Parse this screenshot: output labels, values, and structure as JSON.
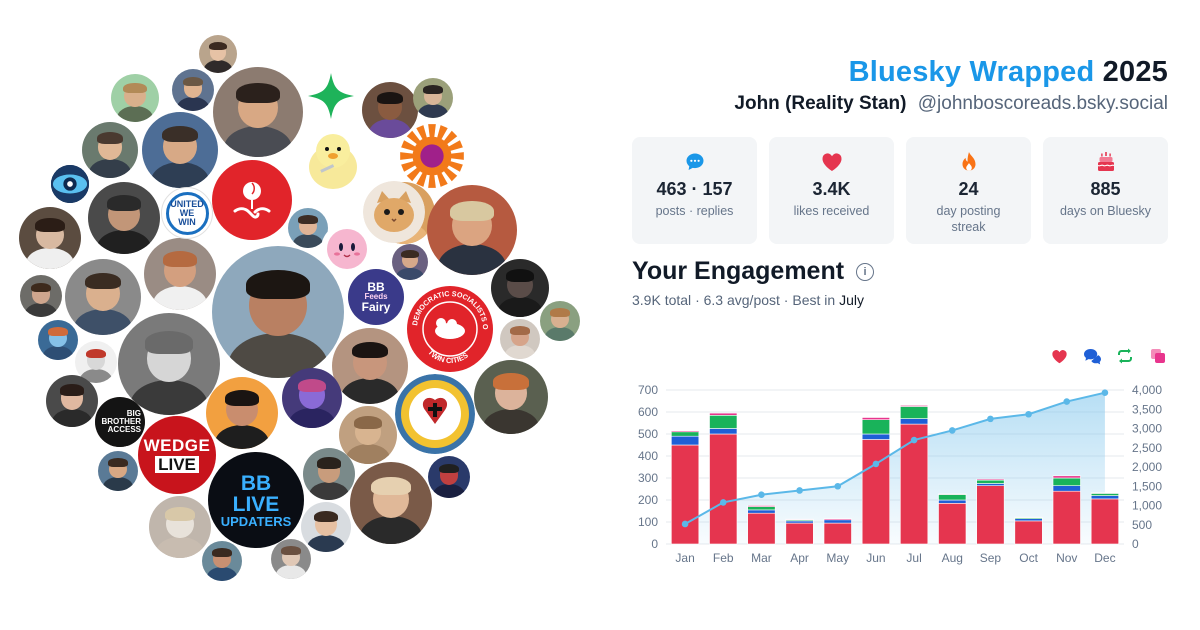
{
  "header": {
    "brand": "Bluesky Wrapped",
    "year": "2025",
    "display_name": "John (Reality Stan)",
    "handle": "@johnboscoreads.bsky.social"
  },
  "stats": [
    {
      "icon": "speech-bubble-icon",
      "value": "463 · 157",
      "label": "posts · replies",
      "color": "#1a97e8"
    },
    {
      "icon": "heart-icon",
      "value": "3.4K",
      "label": "likes received",
      "color": "#e5354f"
    },
    {
      "icon": "flame-icon",
      "value": "24",
      "label": "day posting streak",
      "color": "#f97316"
    },
    {
      "icon": "cake-icon",
      "value": "885",
      "label": "days on Bluesky",
      "color": "#e5354f"
    }
  ],
  "engagement": {
    "title": "Your Engagement",
    "total": "3.9K",
    "total_label": "total",
    "avg": "6.3 avg/post",
    "best_label": "Best in",
    "best_month": "July",
    "sep": "·"
  },
  "legend": [
    {
      "icon": "heart-icon",
      "color": "#e5354f"
    },
    {
      "icon": "reply-bubbles-icon",
      "color": "#1f5fd6"
    },
    {
      "icon": "repost-icon",
      "color": "#19b35a"
    },
    {
      "icon": "quote-icon",
      "color": "#e8358d"
    }
  ],
  "badges": {
    "united": [
      "UNITED",
      "WE",
      "WIN"
    ],
    "feeds": [
      "BB",
      "Feeds",
      "Fairy"
    ],
    "dsa_ring": "DEMOCRATIC SOCIALISTS OF AMERICA",
    "dsa_bottom": "TWIN CITIES",
    "wedge": [
      "WEDGE",
      "LIVE"
    ],
    "bblive": [
      "BB",
      "LIVE",
      "UPDATERS"
    ],
    "bigbro": [
      "BIG",
      "BROTHER",
      "ACCESS"
    ]
  },
  "colors": {
    "likes": "#e5354f",
    "replies": "#1f5fd6",
    "reposts": "#19b35a",
    "quotes": "#e8358d",
    "cumulative": "#5bb8e8",
    "brand": "#1a97e8"
  },
  "chart_data": {
    "type": "bar",
    "stacked": true,
    "categories": [
      "Jan",
      "Feb",
      "Mar",
      "Apr",
      "May",
      "Jun",
      "Jul",
      "Aug",
      "Sep",
      "Oct",
      "Nov",
      "Dec"
    ],
    "series": [
      {
        "values": [
          450,
          500,
          140,
          95,
          95,
          475,
          545,
          185,
          265,
          105,
          240,
          205
        ]
      },
      {
        "values": [
          40,
          25,
          15,
          10,
          15,
          25,
          25,
          15,
          10,
          10,
          25,
          15
        ]
      },
      {
        "values": [
          20,
          60,
          15,
          5,
          0,
          65,
          55,
          25,
          15,
          5,
          35,
          10
        ]
      },
      {
        "values": [
          5,
          10,
          5,
          3,
          5,
          10,
          5,
          3,
          5,
          2,
          10,
          3
        ]
      }
    ],
    "line": {
      "axis": "right",
      "values": [
        520,
        1080,
        1280,
        1390,
        1500,
        2080,
        2700,
        2950,
        3250,
        3370,
        3700,
        3930
      ]
    },
    "ylim": [
      0,
      700
    ],
    "yticks": [
      0,
      100,
      200,
      300,
      400,
      500,
      600,
      700
    ],
    "y2lim": [
      0,
      4000
    ],
    "y2ticks": [
      "0",
      "500",
      "1,000",
      "1,500",
      "2,000",
      "2,500",
      "3,000",
      "3,500",
      "4,000"
    ],
    "grid": true
  }
}
